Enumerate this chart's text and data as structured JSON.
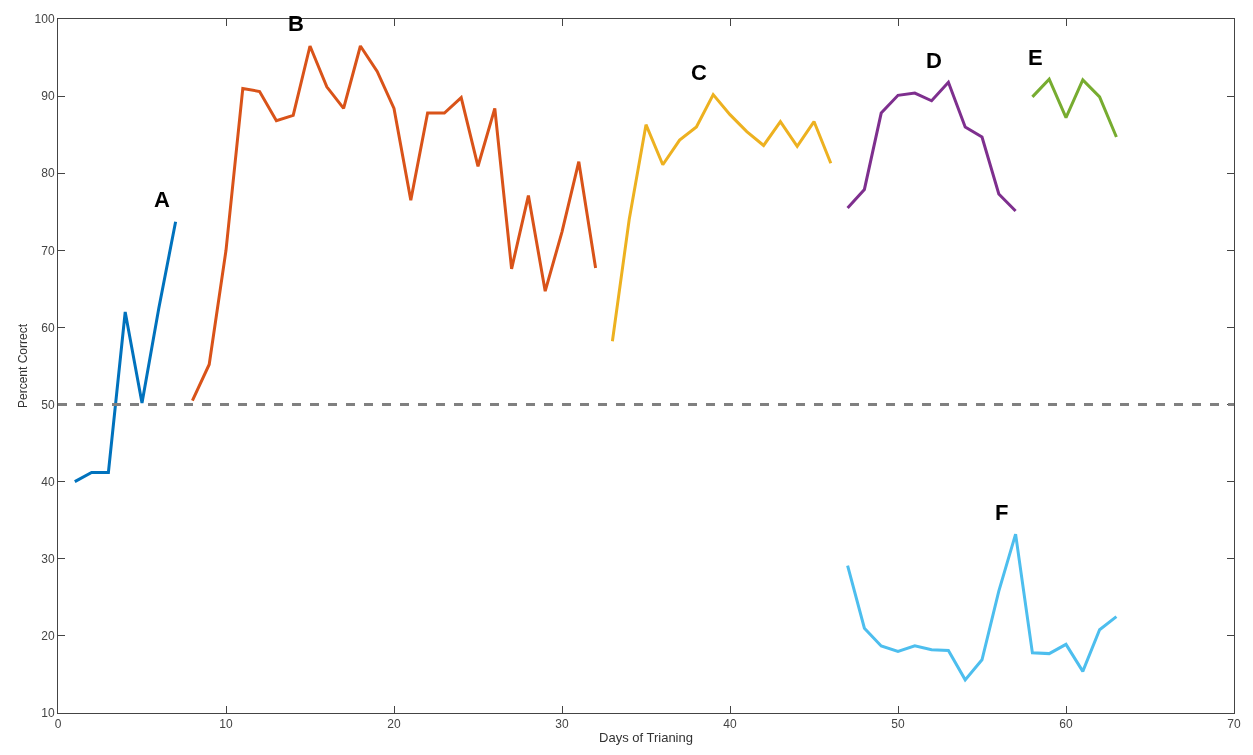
{
  "chart_data": {
    "type": "line",
    "xlabel": "Days of Trianing",
    "ylabel": "Percent Correct",
    "xlim": [
      0,
      70
    ],
    "xticks": [
      0,
      10,
      20,
      30,
      40,
      50,
      60,
      70
    ],
    "ylim": [
      10,
      100
    ],
    "yticks": [
      10,
      20,
      30,
      40,
      50,
      60,
      70,
      80,
      90,
      100
    ],
    "legend": false,
    "marker": "none",
    "line_style": "solid",
    "series": [
      {
        "name": "A",
        "color": "#0072bd",
        "x": [
          1,
          2,
          3,
          4,
          5,
          6,
          7
        ],
        "values": [
          40,
          41.2,
          41.2,
          62,
          50.2,
          62.5,
          73.7
        ]
      },
      {
        "name": "B",
        "color": "#d95319",
        "x": [
          8,
          9,
          10,
          11,
          12,
          13,
          14,
          15,
          16,
          17,
          18,
          19,
          20,
          21,
          22,
          23,
          24,
          25,
          26,
          27,
          28,
          29,
          30,
          31,
          32
        ],
        "values": [
          50.5,
          55.2,
          70,
          91,
          90.6,
          86.8,
          87.5,
          96.5,
          91.2,
          88.4,
          96.5,
          93.2,
          88.4,
          76.5,
          87.8,
          87.8,
          89.8,
          80.9,
          88.4,
          67.6,
          77.1,
          64.7,
          72.4,
          81.5,
          67.7
        ]
      },
      {
        "name": "C",
        "color": "#edb120",
        "x": [
          33,
          34,
          35,
          36,
          37,
          38,
          39,
          40,
          41,
          42,
          43,
          44,
          45,
          46
        ],
        "values": [
          58.2,
          74,
          86.3,
          81.1,
          84.3,
          86,
          90.2,
          87.6,
          85.4,
          83.6,
          86.7,
          83.5,
          86.7,
          81.3
        ]
      },
      {
        "name": "D",
        "color": "#7e2f8e",
        "x": [
          47,
          48,
          49,
          50,
          51,
          52,
          53,
          54,
          55,
          56,
          57
        ],
        "values": [
          75.5,
          77.9,
          87.8,
          90.1,
          90.4,
          89.4,
          91.8,
          86,
          84.7,
          77.3,
          75.1
        ]
      },
      {
        "name": "E",
        "color": "#77ac30",
        "x": [
          58,
          59,
          60,
          61,
          62,
          63
        ],
        "values": [
          89.9,
          92.2,
          87.2,
          92.1,
          89.9,
          84.7
        ]
      },
      {
        "name": "F",
        "color": "#4dbeee",
        "x": [
          47,
          48,
          49,
          50,
          51,
          52,
          53,
          54,
          55,
          56,
          57,
          58,
          59,
          60,
          61,
          62,
          63
        ],
        "values": [
          29.1,
          21,
          18.7,
          18,
          18.7,
          18.2,
          18.1,
          14.3,
          16.9,
          25.8,
          33.2,
          17.8,
          17.7,
          18.9,
          15.4,
          20.8,
          22.5
        ]
      }
    ],
    "ref_lines": [
      {
        "axis": "y",
        "value": 50,
        "color": "#808080",
        "line_style": "dashed"
      }
    ]
  }
}
